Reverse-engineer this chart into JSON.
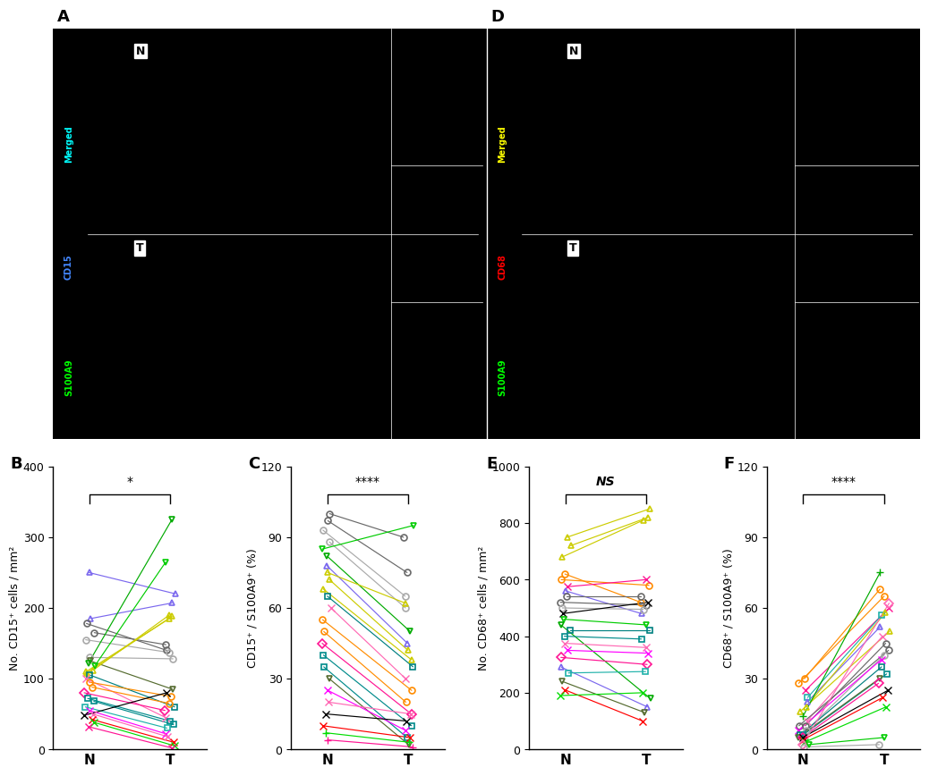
{
  "panel_B": {
    "label": "B",
    "ylabel": "No. CD15⁺ cells / mm²",
    "ylim": [
      0,
      400
    ],
    "yticks": [
      0,
      100,
      200,
      300,
      400
    ],
    "sig": "*",
    "sig_italic": false,
    "pairs": [
      {
        "N": 250,
        "T": 220,
        "color": "#7B68EE",
        "marker": "^"
      },
      {
        "N": 185,
        "T": 207,
        "color": "#7B68EE",
        "marker": "^"
      },
      {
        "N": 178,
        "T": 140,
        "color": "#696969",
        "marker": "o"
      },
      {
        "N": 165,
        "T": 148,
        "color": "#696969",
        "marker": "o"
      },
      {
        "N": 155,
        "T": 137,
        "color": "#A9A9A9",
        "marker": "o"
      },
      {
        "N": 130,
        "T": 128,
        "color": "#A9A9A9",
        "marker": "o"
      },
      {
        "N": 125,
        "T": 85,
        "color": "#556B2F",
        "marker": "v"
      },
      {
        "N": 122,
        "T": 325,
        "color": "#00AA00",
        "marker": "v"
      },
      {
        "N": 118,
        "T": 265,
        "color": "#00CC00",
        "marker": "v"
      },
      {
        "N": 112,
        "T": 190,
        "color": "#CCCC00",
        "marker": "^"
      },
      {
        "N": 110,
        "T": 185,
        "color": "#CCCC00",
        "marker": "^"
      },
      {
        "N": 108,
        "T": 188,
        "color": "#CCCC00",
        "marker": "^"
      },
      {
        "N": 105,
        "T": 60,
        "color": "#008080",
        "marker": "s"
      },
      {
        "N": 100,
        "T": 45,
        "color": "#FF69B4",
        "marker": "x"
      },
      {
        "N": 95,
        "T": 75,
        "color": "#FF8C00",
        "marker": "o"
      },
      {
        "N": 88,
        "T": 65,
        "color": "#FF8C00",
        "marker": "o"
      },
      {
        "N": 80,
        "T": 55,
        "color": "#FF1493",
        "marker": "D"
      },
      {
        "N": 72,
        "T": 40,
        "color": "#008B8B",
        "marker": "s"
      },
      {
        "N": 68,
        "T": 35,
        "color": "#008B8B",
        "marker": "s"
      },
      {
        "N": 60,
        "T": 30,
        "color": "#20B2AA",
        "marker": "s"
      },
      {
        "N": 55,
        "T": 22,
        "color": "#FF00FF",
        "marker": "x"
      },
      {
        "N": 50,
        "T": 18,
        "color": "#FF69B4",
        "marker": "x"
      },
      {
        "N": 48,
        "T": 80,
        "color": "#000000",
        "marker": "x"
      },
      {
        "N": 42,
        "T": 10,
        "color": "#FF0000",
        "marker": "x"
      },
      {
        "N": 38,
        "T": 5,
        "color": "#00DD00",
        "marker": "x"
      },
      {
        "N": 32,
        "T": 2,
        "color": "#FF1493",
        "marker": "x"
      }
    ]
  },
  "panel_C": {
    "label": "C",
    "ylabel": "CD15⁺ / S100A9⁺ (%)",
    "ylim": [
      0,
      120
    ],
    "yticks": [
      0,
      30,
      60,
      90,
      120
    ],
    "sig": "****",
    "sig_italic": false,
    "pairs": [
      {
        "N": 100,
        "T": 90,
        "color": "#696969",
        "marker": "o"
      },
      {
        "N": 97,
        "T": 75,
        "color": "#696969",
        "marker": "o"
      },
      {
        "N": 93,
        "T": 65,
        "color": "#A9A9A9",
        "marker": "o"
      },
      {
        "N": 88,
        "T": 60,
        "color": "#A9A9A9",
        "marker": "o"
      },
      {
        "N": 85,
        "T": 95,
        "color": "#00CC00",
        "marker": "v"
      },
      {
        "N": 82,
        "T": 50,
        "color": "#00AA00",
        "marker": "v"
      },
      {
        "N": 78,
        "T": 45,
        "color": "#7B68EE",
        "marker": "^"
      },
      {
        "N": 75,
        "T": 62,
        "color": "#CCCC00",
        "marker": "^"
      },
      {
        "N": 72,
        "T": 42,
        "color": "#CCCC00",
        "marker": "^"
      },
      {
        "N": 68,
        "T": 38,
        "color": "#CCCC00",
        "marker": "^"
      },
      {
        "N": 65,
        "T": 35,
        "color": "#008080",
        "marker": "s"
      },
      {
        "N": 60,
        "T": 30,
        "color": "#FF69B4",
        "marker": "x"
      },
      {
        "N": 55,
        "T": 25,
        "color": "#FF8C00",
        "marker": "o"
      },
      {
        "N": 50,
        "T": 20,
        "color": "#FF8C00",
        "marker": "o"
      },
      {
        "N": 45,
        "T": 15,
        "color": "#FF1493",
        "marker": "D"
      },
      {
        "N": 40,
        "T": 10,
        "color": "#008B8B",
        "marker": "s"
      },
      {
        "N": 35,
        "T": 5,
        "color": "#008B8B",
        "marker": "s"
      },
      {
        "N": 30,
        "T": 2,
        "color": "#556B2F",
        "marker": "v"
      },
      {
        "N": 25,
        "T": 8,
        "color": "#FF00FF",
        "marker": "x"
      },
      {
        "N": 20,
        "T": 15,
        "color": "#FF69B4",
        "marker": "x"
      },
      {
        "N": 15,
        "T": 12,
        "color": "#000000",
        "marker": "x"
      },
      {
        "N": 10,
        "T": 5,
        "color": "#FF0000",
        "marker": "x"
      },
      {
        "N": 7,
        "T": 3,
        "color": "#00DD00",
        "marker": "+"
      },
      {
        "N": 4,
        "T": 1,
        "color": "#FF1493",
        "marker": "+"
      }
    ]
  },
  "panel_E": {
    "label": "E",
    "ylabel": "No. CD68⁺ cells / mm²",
    "ylim": [
      0,
      1000
    ],
    "yticks": [
      0,
      200,
      400,
      600,
      800,
      1000
    ],
    "sig": "NS",
    "sig_italic": true,
    "pairs": [
      {
        "N": 750,
        "T": 850,
        "color": "#CCCC00",
        "marker": "^"
      },
      {
        "N": 720,
        "T": 820,
        "color": "#CCCC00",
        "marker": "^"
      },
      {
        "N": 680,
        "T": 810,
        "color": "#CCCC00",
        "marker": "^"
      },
      {
        "N": 620,
        "T": 520,
        "color": "#FF8C00",
        "marker": "o"
      },
      {
        "N": 600,
        "T": 580,
        "color": "#FF8C00",
        "marker": "o"
      },
      {
        "N": 575,
        "T": 600,
        "color": "#FF1493",
        "marker": "x"
      },
      {
        "N": 560,
        "T": 480,
        "color": "#7B68EE",
        "marker": "^"
      },
      {
        "N": 540,
        "T": 540,
        "color": "#696969",
        "marker": "o"
      },
      {
        "N": 520,
        "T": 510,
        "color": "#696969",
        "marker": "o"
      },
      {
        "N": 500,
        "T": 495,
        "color": "#A9A9A9",
        "marker": "o"
      },
      {
        "N": 480,
        "T": 520,
        "color": "#000000",
        "marker": "x"
      },
      {
        "N": 460,
        "T": 440,
        "color": "#00CC00",
        "marker": "v"
      },
      {
        "N": 440,
        "T": 180,
        "color": "#00AA00",
        "marker": "v"
      },
      {
        "N": 420,
        "T": 420,
        "color": "#008080",
        "marker": "s"
      },
      {
        "N": 400,
        "T": 390,
        "color": "#008B8B",
        "marker": "s"
      },
      {
        "N": 375,
        "T": 360,
        "color": "#FF69B4",
        "marker": "x"
      },
      {
        "N": 350,
        "T": 340,
        "color": "#FF00FF",
        "marker": "x"
      },
      {
        "N": 325,
        "T": 300,
        "color": "#FF1493",
        "marker": "D"
      },
      {
        "N": 290,
        "T": 150,
        "color": "#7B68EE",
        "marker": "^"
      },
      {
        "N": 270,
        "T": 275,
        "color": "#20B2AA",
        "marker": "s"
      },
      {
        "N": 240,
        "T": 130,
        "color": "#556B2F",
        "marker": "v"
      },
      {
        "N": 210,
        "T": 100,
        "color": "#FF0000",
        "marker": "x"
      },
      {
        "N": 190,
        "T": 200,
        "color": "#00DD00",
        "marker": "x"
      }
    ]
  },
  "panel_F": {
    "label": "F",
    "ylabel": "CD68⁺ / S100A9⁺ (%)",
    "ylim": [
      0,
      120
    ],
    "yticks": [
      0,
      30,
      60,
      90,
      120
    ],
    "sig": "****",
    "sig_italic": false,
    "pairs": [
      {
        "N": 30,
        "T": 68,
        "color": "#FF8C00",
        "marker": "o"
      },
      {
        "N": 28,
        "T": 65,
        "color": "#FF8C00",
        "marker": "o"
      },
      {
        "N": 25,
        "T": 60,
        "color": "#FF1493",
        "marker": "x"
      },
      {
        "N": 22,
        "T": 57,
        "color": "#20B2AA",
        "marker": "s"
      },
      {
        "N": 20,
        "T": 52,
        "color": "#7B68EE",
        "marker": "^"
      },
      {
        "N": 18,
        "T": 58,
        "color": "#CCCC00",
        "marker": "^"
      },
      {
        "N": 16,
        "T": 50,
        "color": "#CCCC00",
        "marker": "^"
      },
      {
        "N": 14,
        "T": 75,
        "color": "#00AA00",
        "marker": "+"
      },
      {
        "N": 12,
        "T": 48,
        "color": "#FF69B4",
        "marker": "x"
      },
      {
        "N": 10,
        "T": 45,
        "color": "#696969",
        "marker": "o"
      },
      {
        "N": 10,
        "T": 42,
        "color": "#696969",
        "marker": "o"
      },
      {
        "N": 8,
        "T": 40,
        "color": "#A9A9A9",
        "marker": "o"
      },
      {
        "N": 8,
        "T": 38,
        "color": "#FF00FF",
        "marker": "x"
      },
      {
        "N": 6,
        "T": 35,
        "color": "#008080",
        "marker": "s"
      },
      {
        "N": 6,
        "T": 32,
        "color": "#008B8B",
        "marker": "s"
      },
      {
        "N": 5,
        "T": 30,
        "color": "#556B2F",
        "marker": "v"
      },
      {
        "N": 5,
        "T": 28,
        "color": "#FF1493",
        "marker": "D"
      },
      {
        "N": 5,
        "T": 25,
        "color": "#000000",
        "marker": "x"
      },
      {
        "N": 4,
        "T": 22,
        "color": "#FF0000",
        "marker": "x"
      },
      {
        "N": 3,
        "T": 18,
        "color": "#00DD00",
        "marker": "x"
      },
      {
        "N": 2,
        "T": 62,
        "color": "#FF69B4",
        "marker": "D"
      },
      {
        "N": 2,
        "T": 5,
        "color": "#00CC00",
        "marker": "v"
      },
      {
        "N": 1,
        "T": 2,
        "color": "#A9A9A9",
        "marker": "o"
      }
    ]
  },
  "bg_color": "#FFFFFF",
  "tick_fontsize": 9,
  "axis_label_fontsize": 9,
  "panel_label_fontsize": 13
}
